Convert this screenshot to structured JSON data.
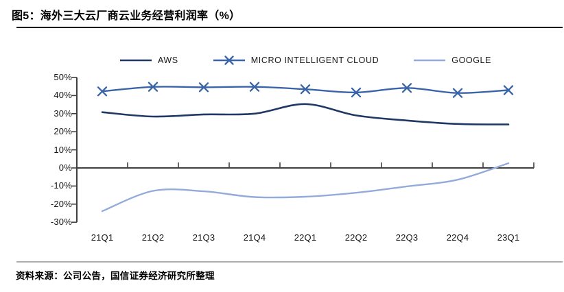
{
  "figure": {
    "title": "图5：海外三大云厂商云业务经营利润率（%）",
    "source": "资料来源：公司公告，国信证券经济研究所整理"
  },
  "chart_data": {
    "type": "line",
    "categories": [
      "21Q1",
      "21Q2",
      "21Q3",
      "21Q4",
      "22Q1",
      "22Q2",
      "22Q3",
      "22Q4",
      "23Q1"
    ],
    "series": [
      {
        "name": "AWS",
        "color": "#1F3864",
        "marker": "none",
        "line_width": 2.6,
        "values": [
          30.8,
          28.4,
          29.6,
          30.0,
          35.3,
          29.0,
          26.2,
          24.3,
          24.0
        ]
      },
      {
        "name": "MICRO INTELLIGENT CLOUD",
        "color": "#3A64A8",
        "marker": "x",
        "line_width": 2.4,
        "values": [
          42.3,
          44.8,
          44.6,
          44.8,
          43.5,
          41.7,
          44.2,
          41.4,
          43.0
        ]
      },
      {
        "name": "GOOGLE",
        "color": "#93ABDB",
        "marker": "none",
        "line_width": 2.4,
        "values": [
          -23.9,
          -12.7,
          -12.9,
          -16.1,
          -15.9,
          -13.7,
          -10.2,
          -6.5,
          2.6
        ]
      }
    ],
    "ylim": [
      -30,
      50
    ],
    "ytick_step": 10,
    "ytick_labels": [
      "50%",
      "40%",
      "30%",
      "20%",
      "10%",
      "0%",
      "-10%",
      "-20%",
      "-30%"
    ],
    "axis_color": "#3F3F3F",
    "grid": false,
    "smooth": true,
    "legend_position": "top"
  },
  "colors": {
    "aws_line": "#1F3864",
    "micro_line": "#3A64A8",
    "google_line": "#93ABDB",
    "axis": "#3F3F3F",
    "title_rule": "#141414",
    "footer_rule": "#ABABAB"
  }
}
